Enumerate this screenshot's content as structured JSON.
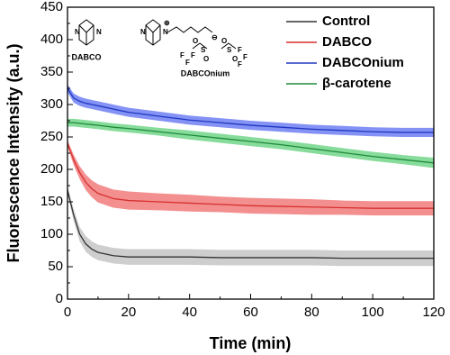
{
  "chart_data": {
    "type": "line_band",
    "xlabel": "Time (min)",
    "ylabel": "Fluorescence Intensity (a.u.)",
    "x": [
      0,
      2,
      4,
      6,
      8,
      10,
      15,
      20,
      30,
      40,
      50,
      60,
      70,
      80,
      90,
      100,
      110,
      120
    ],
    "xlim": [
      0,
      120
    ],
    "xticks": [
      0,
      20,
      40,
      60,
      80,
      100,
      120
    ],
    "ylim": [
      0,
      450
    ],
    "yticks": [
      0,
      50,
      100,
      150,
      200,
      250,
      300,
      350,
      400,
      450
    ],
    "legend": "upper right",
    "series": [
      {
        "name": "Control",
        "color": "#333333",
        "band_color": "#bdbdbd",
        "values": [
          168,
          130,
          100,
          85,
          77,
          72,
          67,
          65,
          65,
          65,
          64,
          64,
          64,
          64,
          63,
          63,
          63,
          63
        ],
        "errors": [
          6,
          9,
          11,
          12,
          12,
          12,
          12,
          12,
          12,
          12,
          12,
          12,
          12,
          12,
          12,
          12,
          12,
          12
        ]
      },
      {
        "name": "DABCO",
        "color": "#d73030",
        "band_color": "#ef6a6a",
        "values": [
          240,
          215,
          195,
          180,
          170,
          163,
          155,
          152,
          150,
          148,
          146,
          144,
          143,
          142,
          141,
          140,
          140,
          140
        ],
        "errors": [
          5,
          8,
          10,
          12,
          13,
          14,
          14,
          14,
          13,
          13,
          12,
          12,
          12,
          12,
          11,
          11,
          11,
          11
        ]
      },
      {
        "name": "DABCOnium",
        "color": "#2038c0",
        "band_color": "#5a6ef0",
        "values": [
          325,
          310,
          305,
          302,
          300,
          298,
          293,
          288,
          282,
          276,
          272,
          268,
          265,
          262,
          260,
          258,
          257,
          257
        ],
        "errors": [
          6,
          7,
          7,
          7,
          7,
          7,
          7,
          7,
          7,
          7,
          7,
          7,
          7,
          7,
          7,
          7,
          7,
          7
        ]
      },
      {
        "name": "β-carotene",
        "color": "#1f8a3a",
        "band_color": "#5fd07a",
        "values": [
          272,
          272,
          271,
          270,
          269,
          268,
          265,
          263,
          258,
          253,
          248,
          243,
          238,
          232,
          226,
          220,
          215,
          210
        ],
        "errors": [
          6,
          6,
          6,
          6,
          6,
          6,
          6,
          6,
          6,
          7,
          7,
          7,
          7,
          7,
          7,
          7,
          7,
          8
        ]
      }
    ],
    "annotations": [
      "DABCO",
      "DABCOnium"
    ],
    "structure_atoms": [
      "N",
      "N",
      "N",
      "N",
      "⊕",
      "⊖",
      "S",
      "S",
      "O",
      "O",
      "O",
      "O",
      "F",
      "F",
      "F",
      "F",
      "F",
      "F"
    ]
  }
}
